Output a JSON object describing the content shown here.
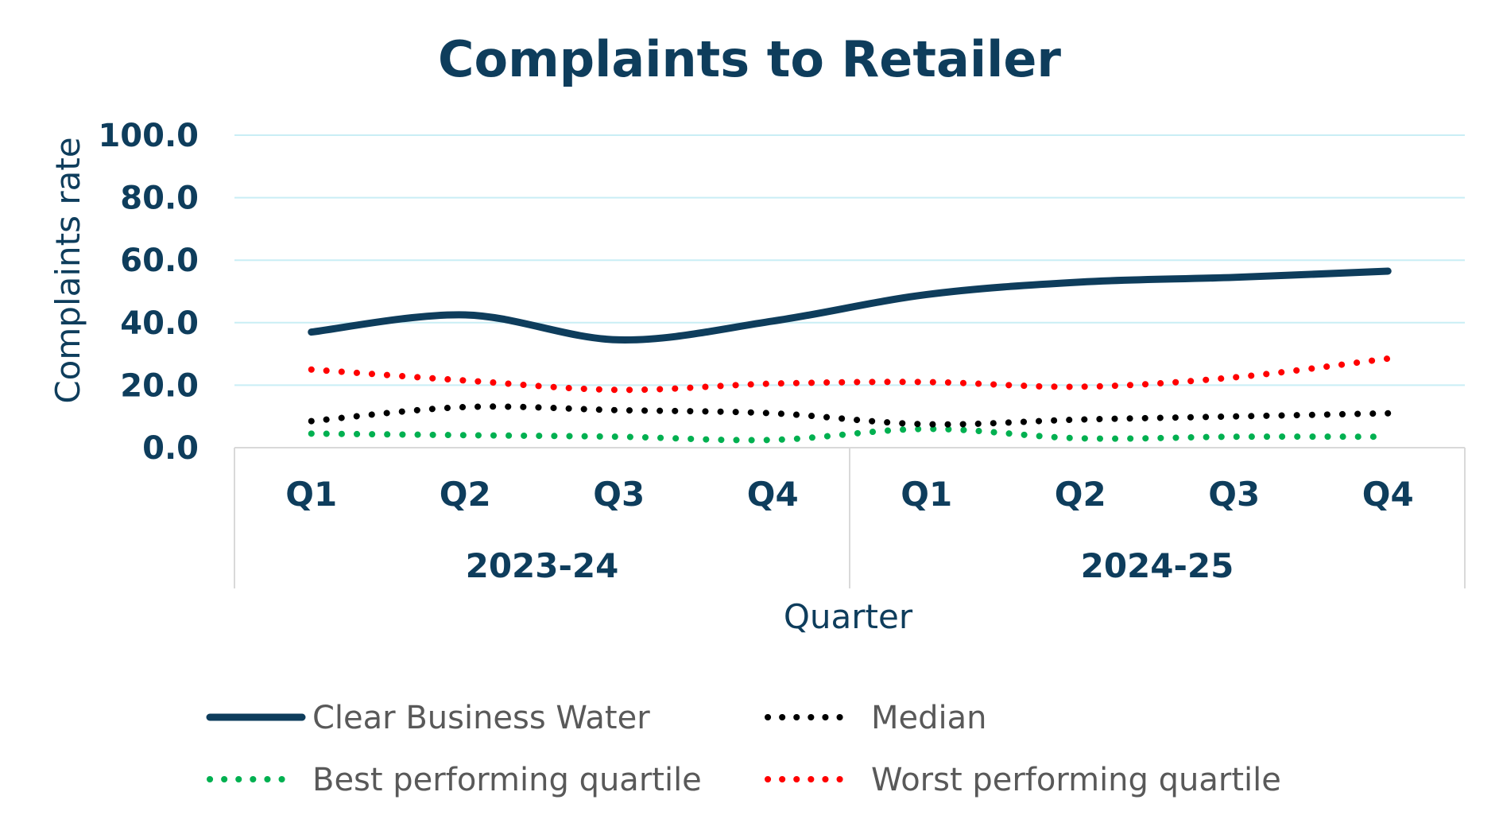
{
  "chart_data": {
    "type": "line",
    "title": "Complaints to Retailer",
    "xlabel": "Quarter",
    "ylabel": "Complaints rate",
    "ylim": [
      0,
      100
    ],
    "yticks": [
      "0.0",
      "20.0",
      "40.0",
      "60.0",
      "80.0",
      "100.0"
    ],
    "grid": true,
    "legend_position": "bottom",
    "categories": [
      "Q1",
      "Q2",
      "Q3",
      "Q4",
      "Q1",
      "Q2",
      "Q3",
      "Q4"
    ],
    "groups": [
      {
        "label": "2023-24",
        "span": 4
      },
      {
        "label": "2024-25",
        "span": 4
      }
    ],
    "series": [
      {
        "name": "Clear Business Water",
        "values": [
          37.0,
          42.5,
          34.5,
          40.5,
          49.0,
          53.0,
          54.5,
          56.5
        ],
        "color": "#0e3d5c",
        "style": "solid"
      },
      {
        "name": "Median",
        "values": [
          8.5,
          13.0,
          12.0,
          11.0,
          7.5,
          9.0,
          10.0,
          11.0
        ],
        "color": "#000000",
        "style": "dotted"
      },
      {
        "name": "Best performing quartile",
        "values": [
          4.5,
          4.0,
          3.5,
          2.5,
          6.0,
          3.0,
          3.5,
          3.5
        ],
        "color": "#00b050",
        "style": "dotted"
      },
      {
        "name": "Worst performing quartile",
        "values": [
          25.0,
          21.5,
          18.5,
          20.5,
          21.0,
          19.5,
          22.5,
          28.5
        ],
        "color": "#ff0000",
        "style": "dotted"
      }
    ]
  }
}
